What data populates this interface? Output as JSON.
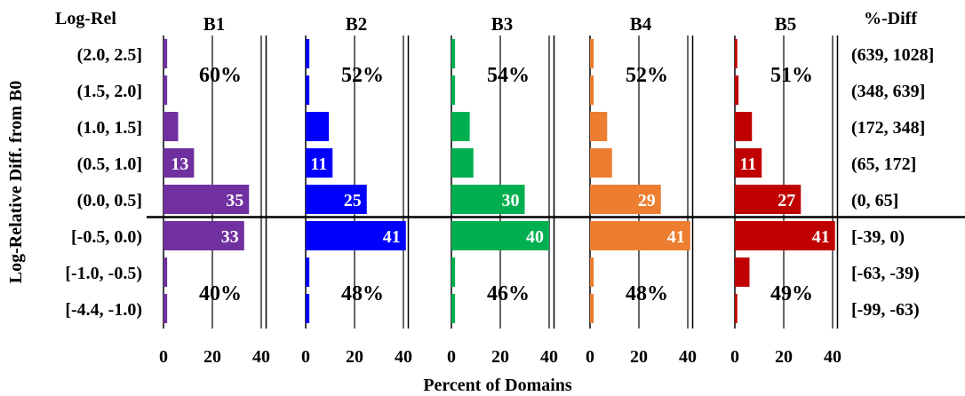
{
  "chart_data": {
    "type": "bar",
    "orientation": "horizontal",
    "ylabel": "Log-Relative Diff. from B0",
    "xlabel": "Percent of Domains",
    "left_header": "Log-Rel",
    "right_header": "%-Diff",
    "categories": [
      "(2.0, 2.5]",
      "(1.5, 2.0]",
      "(1.0, 1.5]",
      "(0.5, 1.0]",
      "(0.0, 0.5]",
      "[-0.5, 0.0)",
      "[-1.0, -0.5)",
      "[-4.4, -1.0)"
    ],
    "right_labels": [
      "(639, 1028]",
      "(348, 639]",
      "(172, 348]",
      "(65, 172]",
      "(0, 65]",
      "[-39, 0)",
      "[-63, -39)",
      "[-99, -63)"
    ],
    "xlim": [
      0,
      42
    ],
    "xticks": [
      "0",
      "20",
      "40"
    ],
    "grid": "vertical",
    "series": [
      {
        "name": "B1",
        "color": "#7030a0",
        "values": [
          1.5,
          1.5,
          6,
          12.5,
          35,
          33,
          1.5,
          1.5
        ],
        "value_labels": [
          "",
          "",
          "",
          "13",
          "35",
          "33",
          "",
          ""
        ],
        "upper_pct": "60%",
        "lower_pct": "40%"
      },
      {
        "name": "B2",
        "color": "#0000ff",
        "values": [
          1.5,
          1.5,
          9.5,
          11,
          25,
          41,
          1.5,
          1.5
        ],
        "value_labels": [
          "",
          "",
          "",
          "11",
          "25",
          "41",
          "",
          ""
        ],
        "upper_pct": "52%",
        "lower_pct": "48%"
      },
      {
        "name": "B3",
        "color": "#00b050",
        "values": [
          1.5,
          1.5,
          7.5,
          9,
          30,
          40,
          1.5,
          1.5
        ],
        "value_labels": [
          "",
          "",
          "",
          "",
          "30",
          "40",
          "",
          ""
        ],
        "upper_pct": "54%",
        "lower_pct": "46%"
      },
      {
        "name": "B4",
        "color": "#ed7d31",
        "values": [
          1.5,
          1.5,
          7,
          9,
          29,
          41,
          1.5,
          1.5
        ],
        "value_labels": [
          "",
          "",
          "",
          "",
          "29",
          "41",
          "",
          ""
        ],
        "upper_pct": "52%",
        "lower_pct": "48%"
      },
      {
        "name": "B5",
        "color": "#c00000",
        "values": [
          1,
          1.5,
          7,
          11,
          27,
          41,
          6,
          1
        ],
        "value_labels": [
          "",
          "",
          "",
          "11",
          "27",
          "41",
          "",
          ""
        ],
        "upper_pct": "51%",
        "lower_pct": "49%"
      }
    ]
  }
}
